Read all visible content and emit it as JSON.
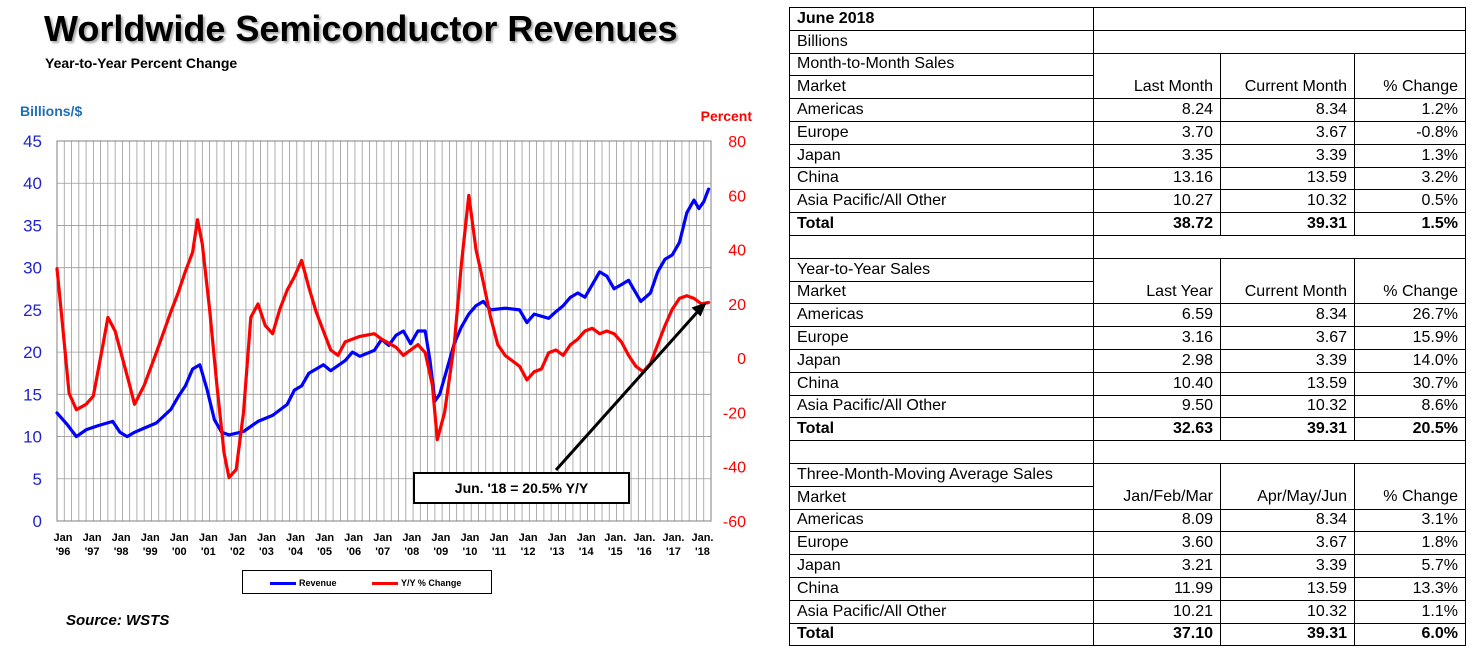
{
  "chart_data": {
    "type": "line",
    "title": "Worldwide Semiconductor Revenues",
    "subtitle": "Year-to-Year Percent Change",
    "ylabel_left": "Billions/$",
    "ylabel_right": "Percent",
    "ylim_left": [
      0,
      45
    ],
    "ylim_right": [
      -60,
      80
    ],
    "yticks_left": [
      "45",
      "40",
      "35",
      "30",
      "25",
      "20",
      "15",
      "10",
      "5",
      "0"
    ],
    "yticks_right": [
      "80",
      "60",
      "40",
      "20",
      "0",
      "-20",
      "-40",
      "-60"
    ],
    "x_ticks": [
      {
        "label": "Jan",
        "year": "'96"
      },
      {
        "label": "Jan",
        "year": "'97"
      },
      {
        "label": "Jan",
        "year": "'98"
      },
      {
        "label": "Jan",
        "year": "'99"
      },
      {
        "label": "Jan",
        "year": "'00"
      },
      {
        "label": "Jan",
        "year": "'01"
      },
      {
        "label": "Jan",
        "year": "'02"
      },
      {
        "label": "Jan",
        "year": "'03"
      },
      {
        "label": "Jan",
        "year": "'04"
      },
      {
        "label": "Jan",
        "year": "'05"
      },
      {
        "label": "Jan",
        "year": "'06"
      },
      {
        "label": "Jan",
        "year": "'07"
      },
      {
        "label": "Jan",
        "year": "'08"
      },
      {
        "label": "Jan",
        "year": "'09"
      },
      {
        "label": "Jan",
        "year": "'10"
      },
      {
        "label": "Jan",
        "year": "'11"
      },
      {
        "label": "Jan",
        "year": "'12"
      },
      {
        "label": "Jan",
        "year": "'13"
      },
      {
        "label": "Jan",
        "year": "'14"
      },
      {
        "label": "Jan.",
        "year": "'15"
      },
      {
        "label": "Jan.",
        "year": "'16"
      },
      {
        "label": "Jan.",
        "year": "'17"
      },
      {
        "label": "Jan.",
        "year": "'18"
      }
    ],
    "grid": true,
    "legend_position": "bottom",
    "series": [
      {
        "name": "Revenue",
        "axis": "left",
        "color": "#0000ff",
        "points": [
          [
            "1996-01",
            12.8
          ],
          [
            "1996-05",
            11.5
          ],
          [
            "1996-09",
            10.0
          ],
          [
            "1997-01",
            10.8
          ],
          [
            "1997-06",
            11.3
          ],
          [
            "1997-12",
            11.8
          ],
          [
            "1998-03",
            10.5
          ],
          [
            "1998-06",
            10.0
          ],
          [
            "1998-09",
            10.5
          ],
          [
            "1999-01",
            11.0
          ],
          [
            "1999-06",
            11.6
          ],
          [
            "1999-12",
            13.2
          ],
          [
            "2000-03",
            14.7
          ],
          [
            "2000-06",
            16.0
          ],
          [
            "2000-09",
            18.0
          ],
          [
            "2000-12",
            18.5
          ],
          [
            "2001-03",
            15.5
          ],
          [
            "2001-06",
            12.0
          ],
          [
            "2001-09",
            10.5
          ],
          [
            "2001-12",
            10.2
          ],
          [
            "2002-06",
            10.6
          ],
          [
            "2002-12",
            11.8
          ],
          [
            "2003-06",
            12.5
          ],
          [
            "2003-12",
            13.8
          ],
          [
            "2004-03",
            15.5
          ],
          [
            "2004-06",
            16.0
          ],
          [
            "2004-09",
            17.5
          ],
          [
            "2004-12",
            18.0
          ],
          [
            "2005-03",
            18.5
          ],
          [
            "2005-06",
            17.8
          ],
          [
            "2005-12",
            19.0
          ],
          [
            "2006-03",
            20.0
          ],
          [
            "2006-06",
            19.5
          ],
          [
            "2006-12",
            20.2
          ],
          [
            "2007-03",
            21.5
          ],
          [
            "2007-06",
            20.8
          ],
          [
            "2007-09",
            22.0
          ],
          [
            "2007-12",
            22.5
          ],
          [
            "2008-03",
            21.0
          ],
          [
            "2008-06",
            22.5
          ],
          [
            "2008-09",
            22.5
          ],
          [
            "2008-11",
            19.0
          ],
          [
            "2009-01",
            14.2
          ],
          [
            "2009-03",
            15.0
          ],
          [
            "2009-06",
            18.0
          ],
          [
            "2009-09",
            21.0
          ],
          [
            "2009-12",
            23.0
          ],
          [
            "2010-03",
            24.5
          ],
          [
            "2010-06",
            25.5
          ],
          [
            "2010-09",
            26.0
          ],
          [
            "2010-12",
            25.0
          ],
          [
            "2011-06",
            25.2
          ],
          [
            "2011-12",
            25.0
          ],
          [
            "2012-03",
            23.5
          ],
          [
            "2012-06",
            24.5
          ],
          [
            "2012-12",
            24.0
          ],
          [
            "2013-03",
            24.8
          ],
          [
            "2013-06",
            25.5
          ],
          [
            "2013-09",
            26.5
          ],
          [
            "2013-12",
            27.0
          ],
          [
            "2014-03",
            26.5
          ],
          [
            "2014-06",
            28.0
          ],
          [
            "2014-09",
            29.5
          ],
          [
            "2014-12",
            29.0
          ],
          [
            "2015-03",
            27.5
          ],
          [
            "2015-06",
            28.0
          ],
          [
            "2015-09",
            28.5
          ],
          [
            "2015-12",
            27.0
          ],
          [
            "2016-02",
            26.0
          ],
          [
            "2016-06",
            27.0
          ],
          [
            "2016-09",
            29.5
          ],
          [
            "2016-12",
            31.0
          ],
          [
            "2017-03",
            31.5
          ],
          [
            "2017-06",
            33.0
          ],
          [
            "2017-09",
            36.5
          ],
          [
            "2017-12",
            38.0
          ],
          [
            "2018-02",
            37.0
          ],
          [
            "2018-04",
            37.8
          ],
          [
            "2018-06",
            39.3
          ]
        ]
      },
      {
        "name": "Y/Y % Change",
        "axis": "right",
        "color": "#ff0000",
        "points": [
          [
            "1996-01",
            33
          ],
          [
            "1996-03",
            15
          ],
          [
            "1996-06",
            -13
          ],
          [
            "1996-09",
            -19
          ],
          [
            "1997-01",
            -17
          ],
          [
            "1997-04",
            -14
          ],
          [
            "1997-08",
            5
          ],
          [
            "1997-10",
            15
          ],
          [
            "1998-01",
            10
          ],
          [
            "1998-04",
            0
          ],
          [
            "1998-07",
            -10
          ],
          [
            "1998-09",
            -17
          ],
          [
            "1999-01",
            -10
          ],
          [
            "1999-06",
            2
          ],
          [
            "1999-12",
            17
          ],
          [
            "2000-03",
            24
          ],
          [
            "2000-06",
            32
          ],
          [
            "2000-09",
            39
          ],
          [
            "2000-11",
            51
          ],
          [
            "2001-01",
            42
          ],
          [
            "2001-04",
            18
          ],
          [
            "2001-07",
            -10
          ],
          [
            "2001-10",
            -35
          ],
          [
            "2001-12",
            -44
          ],
          [
            "2002-03",
            -41
          ],
          [
            "2002-06",
            -20
          ],
          [
            "2002-09",
            15
          ],
          [
            "2002-12",
            20
          ],
          [
            "2003-03",
            12
          ],
          [
            "2003-06",
            9
          ],
          [
            "2003-09",
            18
          ],
          [
            "2003-12",
            25
          ],
          [
            "2004-03",
            30
          ],
          [
            "2004-06",
            36
          ],
          [
            "2004-09",
            26
          ],
          [
            "2004-12",
            17
          ],
          [
            "2005-03",
            10
          ],
          [
            "2005-06",
            3
          ],
          [
            "2005-09",
            1
          ],
          [
            "2005-12",
            6
          ],
          [
            "2006-06",
            8
          ],
          [
            "2006-12",
            9
          ],
          [
            "2007-03",
            7
          ],
          [
            "2007-09",
            4
          ],
          [
            "2007-12",
            1
          ],
          [
            "2008-03",
            3
          ],
          [
            "2008-06",
            5
          ],
          [
            "2008-09",
            2
          ],
          [
            "2008-12",
            -10
          ],
          [
            "2009-02",
            -30
          ],
          [
            "2009-05",
            -20
          ],
          [
            "2009-09",
            5
          ],
          [
            "2009-12",
            35
          ],
          [
            "2010-03",
            60
          ],
          [
            "2010-06",
            40
          ],
          [
            "2010-09",
            28
          ],
          [
            "2010-12",
            15
          ],
          [
            "2011-03",
            5
          ],
          [
            "2011-06",
            1
          ],
          [
            "2011-09",
            -1
          ],
          [
            "2011-12",
            -3
          ],
          [
            "2012-03",
            -8
          ],
          [
            "2012-06",
            -5
          ],
          [
            "2012-09",
            -4
          ],
          [
            "2012-12",
            2
          ],
          [
            "2013-03",
            3
          ],
          [
            "2013-06",
            1
          ],
          [
            "2013-09",
            5
          ],
          [
            "2013-12",
            7
          ],
          [
            "2014-03",
            10
          ],
          [
            "2014-06",
            11
          ],
          [
            "2014-09",
            9
          ],
          [
            "2014-12",
            10
          ],
          [
            "2015-03",
            9
          ],
          [
            "2015-06",
            6
          ],
          [
            "2015-09",
            1
          ],
          [
            "2015-12",
            -3
          ],
          [
            "2016-03",
            -5
          ],
          [
            "2016-06",
            -2
          ],
          [
            "2016-09",
            5
          ],
          [
            "2016-12",
            12
          ],
          [
            "2017-03",
            18
          ],
          [
            "2017-06",
            22
          ],
          [
            "2017-09",
            23
          ],
          [
            "2017-12",
            22
          ],
          [
            "2018-03",
            20
          ],
          [
            "2018-06",
            20.5
          ]
        ]
      }
    ],
    "annotation": {
      "text": "Jun. '18 = 20.5% Y/Y",
      "points_to": [
        "2018-06",
        20.5
      ],
      "axis": "right"
    },
    "source": "Source: WSTS"
  },
  "table": {
    "header_title": "June 2018",
    "units": "Billions",
    "sections": [
      {
        "title": "Month-to-Month Sales",
        "columns": [
          "Market",
          "Last Month",
          "Current Month",
          "% Change"
        ],
        "rows": [
          [
            "Americas",
            "8.24",
            "8.34",
            "1.2%"
          ],
          [
            "Europe",
            "3.70",
            "3.67",
            "-0.8%"
          ],
          [
            "Japan",
            "3.35",
            "3.39",
            "1.3%"
          ],
          [
            "China",
            "13.16",
            "13.59",
            "3.2%"
          ],
          [
            "Asia Pacific/All Other",
            "10.27",
            "10.32",
            "0.5%"
          ]
        ],
        "total": [
          "Total",
          "38.72",
          "39.31",
          "1.5%"
        ]
      },
      {
        "title": "Year-to-Year Sales",
        "columns": [
          "Market",
          "Last Year",
          "Current Month",
          "% Change"
        ],
        "rows": [
          [
            "Americas",
            "6.59",
            "8.34",
            "26.7%"
          ],
          [
            "Europe",
            "3.16",
            "3.67",
            "15.9%"
          ],
          [
            "Japan",
            "2.98",
            "3.39",
            "14.0%"
          ],
          [
            "China",
            "10.40",
            "13.59",
            "30.7%"
          ],
          [
            "Asia Pacific/All Other",
            "9.50",
            "10.32",
            "8.6%"
          ]
        ],
        "total": [
          "Total",
          "32.63",
          "39.31",
          "20.5%"
        ]
      },
      {
        "title": "Three-Month-Moving Average Sales",
        "columns": [
          "Market",
          "Jan/Feb/Mar",
          "Apr/May/Jun",
          "% Change"
        ],
        "rows": [
          [
            "Americas",
            "8.09",
            "8.34",
            "3.1%"
          ],
          [
            "Europe",
            "3.60",
            "3.67",
            "1.8%"
          ],
          [
            "Japan",
            "3.21",
            "3.39",
            "5.7%"
          ],
          [
            "China",
            "11.99",
            "13.59",
            "13.3%"
          ],
          [
            "Asia Pacific/All Other",
            "10.21",
            "10.32",
            "1.1%"
          ]
        ],
        "total": [
          "Total",
          "37.10",
          "39.31",
          "6.0%"
        ]
      }
    ]
  }
}
